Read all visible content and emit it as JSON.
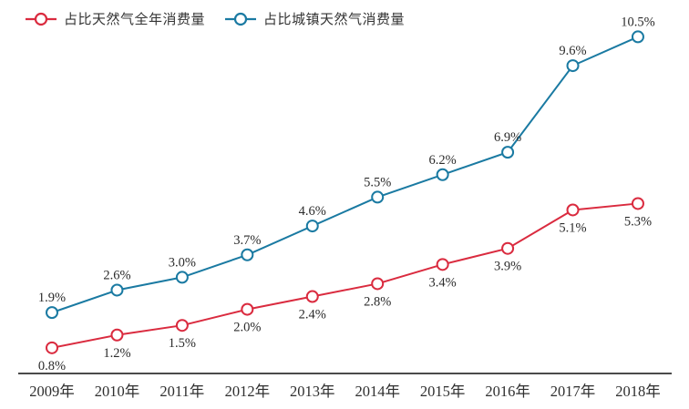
{
  "chart_data": {
    "type": "line",
    "title": "",
    "xlabel": "",
    "ylabel": "",
    "ylim": [
      0,
      11.6
    ],
    "grid": false,
    "legend_position": "top-left",
    "marker": "empty-circle",
    "axis_color": "#4a4a4a",
    "text_color": "#2b2b2b",
    "background_color": "#ffffff",
    "categories": [
      "2009年",
      "2010年",
      "2011年",
      "2012年",
      "2013年",
      "2014年",
      "2015年",
      "2016年",
      "2017年",
      "2018年"
    ],
    "series": [
      {
        "id": "gas-annual-consumption-share",
        "name": "占比天然气全年消费量",
        "color": "#da2b3f",
        "label_position": "below",
        "values": [
          0.8,
          1.2,
          1.5,
          2.0,
          2.4,
          2.8,
          3.4,
          3.9,
          5.1,
          5.3
        ],
        "labels": [
          "0.8%",
          "1.2%",
          "1.5%",
          "2.0%",
          "2.4%",
          "2.8%",
          "3.4%",
          "3.9%",
          "5.1%",
          "5.3%"
        ]
      },
      {
        "id": "urban-gas-consumption-share",
        "name": "占比城镇天然气消费量",
        "color": "#1a7aa2",
        "label_position": "above",
        "values": [
          1.9,
          2.6,
          3.0,
          3.7,
          4.6,
          5.5,
          6.2,
          6.9,
          9.6,
          10.5
        ],
        "labels": [
          "1.9%",
          "2.6%",
          "3.0%",
          "3.7%",
          "4.6%",
          "5.5%",
          "6.2%",
          "6.9%",
          "9.6%",
          "10.5%"
        ]
      }
    ]
  }
}
